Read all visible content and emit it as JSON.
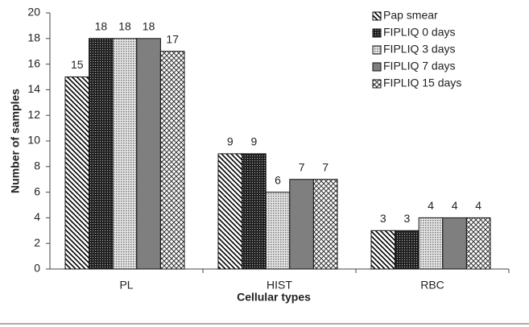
{
  "chart_data": {
    "type": "bar",
    "y_label": "Number of samples",
    "x_label": "Cellular types",
    "categories": [
      "PL",
      "HIST",
      "RBC"
    ],
    "series": [
      {
        "name": "Pap smear",
        "color": "#000000",
        "pattern": "diagonal",
        "values": [
          15,
          9,
          3
        ]
      },
      {
        "name": "FIPLIQ 0 days",
        "color": "#222222",
        "pattern": "dense",
        "values": [
          18,
          9,
          3
        ]
      },
      {
        "name": "FIPLIQ 3 days",
        "color": "#777777",
        "pattern": "dots",
        "values": [
          18,
          6,
          4
        ]
      },
      {
        "name": "FIPLIQ 7 days",
        "color": "#7f7f7f",
        "pattern": "solid",
        "values": [
          18,
          7,
          4
        ]
      },
      {
        "name": "FIPLIQ 15 days",
        "color": "#333333",
        "pattern": "crosshatch",
        "values": [
          17,
          7,
          4
        ]
      }
    ],
    "ylim": [
      0,
      20
    ],
    "yticks": [
      0,
      2,
      4,
      6,
      8,
      10,
      12,
      14,
      16,
      18,
      20
    ],
    "legend": "top-right",
    "grid": false
  }
}
